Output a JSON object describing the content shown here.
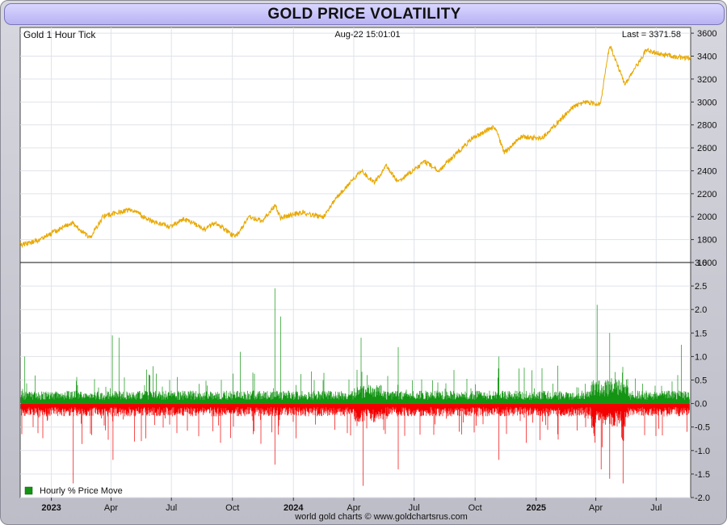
{
  "page": {
    "title": "GOLD PRICE VOLATILITY",
    "footer": "world gold charts © www.goldchartsrus.com"
  },
  "colors": {
    "price_line": "#e8a800",
    "positive_bar": "#139413",
    "negative_bar": "#f20000",
    "grid": "#dfe3ea",
    "title_bar": "#c9c5f7"
  },
  "chart_data": [
    {
      "type": "line",
      "panel": "price",
      "label": "Gold 1 Hour Tick",
      "timestamp": "Aug-22  15:01:01",
      "last_label": "Last = 3371.58",
      "ylim": [
        1600,
        3650
      ],
      "yticks": [
        1600,
        1800,
        2000,
        2200,
        2400,
        2600,
        2800,
        3000,
        3200,
        3400,
        3600
      ],
      "x_range": [
        "2022-11-15",
        "2025-08-22"
      ],
      "series": [
        {
          "x": [
            "2022-11-15",
            "2022-12-15",
            "2023-01-10",
            "2023-02-01",
            "2023-02-28",
            "2023-03-20",
            "2023-04-13",
            "2023-05-03",
            "2023-05-31",
            "2023-06-29",
            "2023-07-20",
            "2023-08-21",
            "2023-09-05",
            "2023-10-05",
            "2023-10-27",
            "2023-11-15",
            "2023-12-04",
            "2023-12-13",
            "2024-01-15",
            "2024-02-14",
            "2024-03-08",
            "2024-04-12",
            "2024-05-02",
            "2024-05-20",
            "2024-06-07",
            "2024-07-17",
            "2024-08-07",
            "2024-09-26",
            "2024-10-30",
            "2024-11-14",
            "2024-12-10",
            "2025-01-10",
            "2025-02-24",
            "2025-03-14",
            "2025-04-08",
            "2025-04-22",
            "2025-05-15",
            "2025-06-16",
            "2025-07-22",
            "2025-08-22"
          ],
          "values": [
            1750,
            1800,
            1880,
            1950,
            1810,
            2000,
            2040,
            2060,
            1960,
            1910,
            1980,
            1890,
            1950,
            1820,
            2000,
            1960,
            2100,
            1990,
            2040,
            1990,
            2180,
            2400,
            2300,
            2440,
            2300,
            2480,
            2400,
            2680,
            2790,
            2560,
            2700,
            2680,
            2950,
            3000,
            2980,
            3500,
            3150,
            3450,
            3400,
            3380
          ]
        }
      ]
    },
    {
      "type": "bar",
      "panel": "volatility",
      "label": "Hourly % Price Move",
      "ylim": [
        -2.0,
        3.0
      ],
      "yticks": [
        -2.0,
        -1.5,
        -1.0,
        -0.5,
        0.0,
        0.5,
        1.0,
        1.5,
        2.0,
        2.5,
        3.0
      ],
      "spikes_positive": [
        {
          "x": "2022-11-22",
          "value": 1.0
        },
        {
          "x": "2023-04-03",
          "value": 1.45
        },
        {
          "x": "2023-04-13",
          "value": 1.4
        },
        {
          "x": "2023-10-13",
          "value": 1.1
        },
        {
          "x": "2023-12-04",
          "value": 2.45
        },
        {
          "x": "2023-12-13",
          "value": 1.85
        },
        {
          "x": "2024-04-12",
          "value": 1.4
        },
        {
          "x": "2024-06-07",
          "value": 1.2
        },
        {
          "x": "2024-11-06",
          "value": 1.0
        },
        {
          "x": "2025-04-03",
          "value": 2.1
        },
        {
          "x": "2025-04-22",
          "value": 1.5
        },
        {
          "x": "2025-08-08",
          "value": 1.25
        }
      ],
      "spikes_negative": [
        {
          "x": "2023-02-03",
          "value": -1.7
        },
        {
          "x": "2023-04-04",
          "value": -1.2
        },
        {
          "x": "2023-12-04",
          "value": -1.3
        },
        {
          "x": "2024-04-15",
          "value": -1.75
        },
        {
          "x": "2024-06-07",
          "value": -1.4
        },
        {
          "x": "2024-11-06",
          "value": -1.2
        },
        {
          "x": "2025-04-09",
          "value": -1.4
        },
        {
          "x": "2025-04-22",
          "value": -1.6
        },
        {
          "x": "2025-05-12",
          "value": -1.7
        }
      ]
    }
  ],
  "legend": {
    "volatility_label": "Hourly % Price Move"
  },
  "x_axis": {
    "ticks": [
      {
        "label": "2023",
        "date": "2023-01-01",
        "year": true
      },
      {
        "label": "Apr",
        "date": "2023-04-01",
        "year": false
      },
      {
        "label": "Jul",
        "date": "2023-07-01",
        "year": false
      },
      {
        "label": "Oct",
        "date": "2023-10-01",
        "year": false
      },
      {
        "label": "2024",
        "date": "2024-01-01",
        "year": true
      },
      {
        "label": "Apr",
        "date": "2024-04-01",
        "year": false
      },
      {
        "label": "Jul",
        "date": "2024-07-01",
        "year": false
      },
      {
        "label": "Oct",
        "date": "2024-10-01",
        "year": false
      },
      {
        "label": "2025",
        "date": "2025-01-01",
        "year": true
      },
      {
        "label": "Apr",
        "date": "2025-04-01",
        "year": false
      },
      {
        "label": "Jul",
        "date": "2025-07-01",
        "year": false
      }
    ]
  }
}
